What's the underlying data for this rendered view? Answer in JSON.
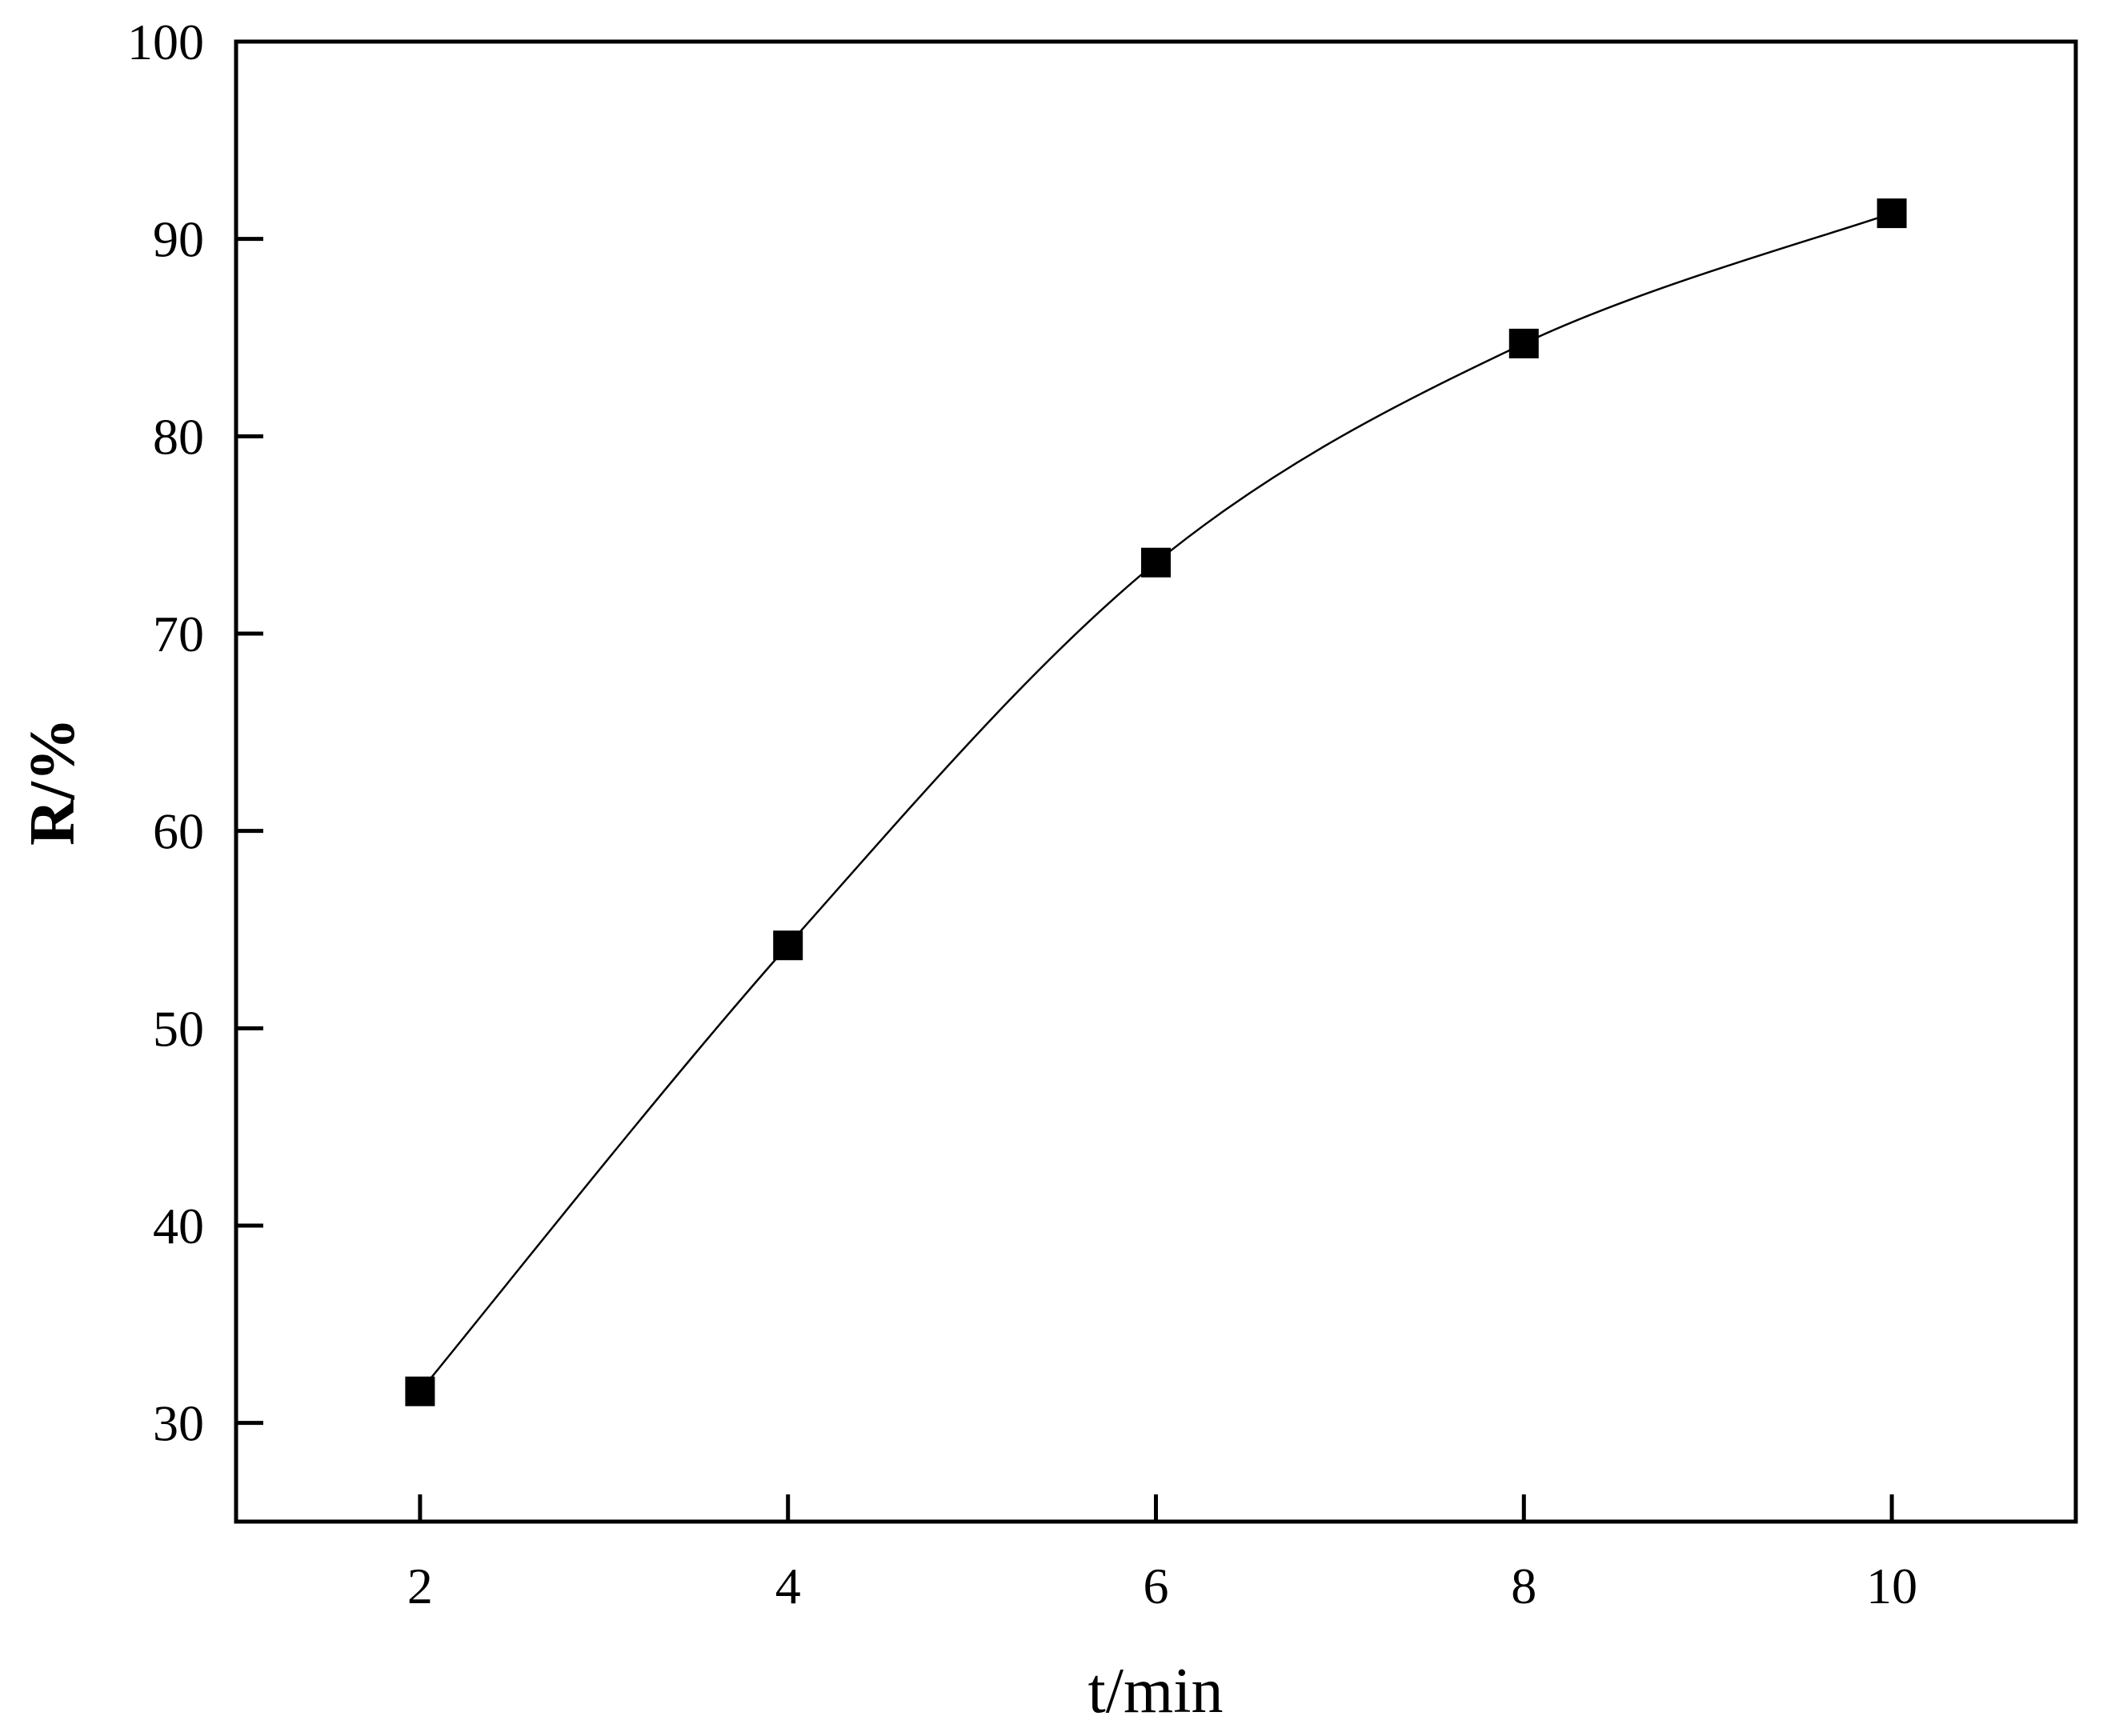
{
  "chart_data": {
    "type": "scatter",
    "xlabel": "t/min",
    "ylabel": "R/%",
    "x": [
      2,
      4,
      6,
      8,
      10
    ],
    "values": [
      31.6,
      54.2,
      73.6,
      84.7,
      91.3
    ],
    "color": "#000000",
    "smooth_line": true,
    "xlim": [
      1,
      11
    ],
    "xticks": [
      2,
      4,
      6,
      8,
      10
    ],
    "ylim": [
      25,
      100
    ],
    "yticks": [
      30,
      40,
      50,
      60,
      70,
      80,
      90,
      100
    ]
  }
}
